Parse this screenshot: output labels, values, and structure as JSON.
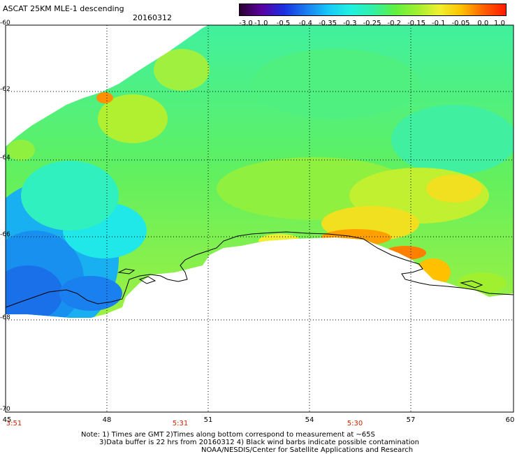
{
  "header": {
    "title": "ASCAT 25KM MLE-1 descending",
    "date": "20160312"
  },
  "colorbar": {
    "labels": [
      "-3.0",
      "-1.0",
      "-0.5",
      "-0.4",
      "-0.35",
      "-0.3",
      "-0.25",
      "-0.2",
      "-0.15",
      "-0.1",
      "-0.05",
      "0.0",
      "1.0"
    ],
    "colors": [
      "#2a0030",
      "#5a00a0",
      "#1a2fe0",
      "#1a7cf0",
      "#18c8f8",
      "#20f0e0",
      "#30f0a8",
      "#60f040",
      "#a0f030",
      "#f0f030",
      "#ffc000",
      "#ff6000",
      "#ff1a00"
    ]
  },
  "axes": {
    "lat_ticks": [
      "-60",
      "-62",
      "-64",
      "-66",
      "-68",
      "-70"
    ],
    "lon_ticks": [
      "45",
      "48",
      "51",
      "54",
      "57",
      "60"
    ],
    "time_labels": [
      "3:51",
      "5:31",
      "5:30"
    ]
  },
  "footer": {
    "note_line1": "Note: 1) Times are GMT 2)Times along bottom correspond to measurement at ~65S",
    "note_line2": "3)Data buffer is 22 hrs from 20160312 4) Black wind barbs indicate possible contamination",
    "note_line3": "NOAA/NESDIS/Center for Satellite Applications and Research"
  }
}
